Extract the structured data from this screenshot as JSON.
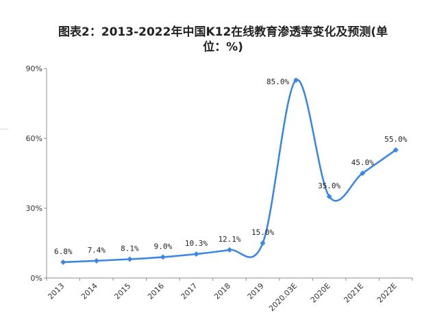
{
  "chart_data": {
    "type": "line",
    "title_line1": "图表2：2013-2022年中国K12在线教育渗透率变化及预测(单",
    "title_line2": "位：%)",
    "categories": [
      "2013",
      "2014",
      "2015",
      "2016",
      "2017",
      "2018",
      "2019",
      "2020.03E",
      "2020E",
      "2021E",
      "2022E"
    ],
    "series": [
      {
        "values": [
          6.8,
          7.4,
          8.1,
          9.0,
          10.3,
          12.1,
          15.0,
          85.0,
          35.0,
          45.0,
          55.0
        ],
        "data_labels": [
          "6.8%",
          "7.4%",
          "8.1%",
          "9.0%",
          "10.3%",
          "12.1%",
          "15.0%",
          "85.0%",
          "35.0%",
          "45.0%",
          "55.0%"
        ],
        "color": "#3b87e4"
      }
    ],
    "yticks": [
      0,
      30,
      60,
      90
    ],
    "ytick_labels": [
      "0%",
      "30%",
      "60%",
      "90%"
    ],
    "ylim": [
      0,
      90
    ],
    "grid": false,
    "smooth": true
  }
}
